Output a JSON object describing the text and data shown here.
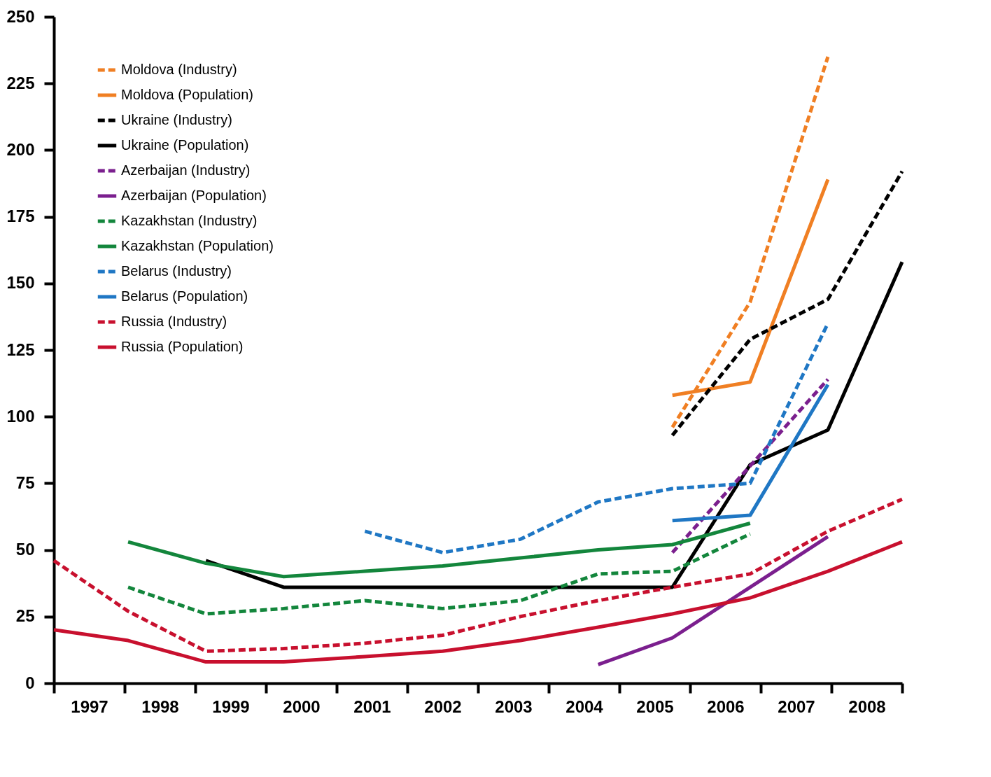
{
  "chart_data": {
    "type": "line",
    "xlim": [
      1997,
      2009
    ],
    "ylim": [
      0,
      250
    ],
    "yticks": [
      0,
      25,
      50,
      75,
      100,
      125,
      150,
      175,
      200,
      225,
      250
    ],
    "xticks": [
      {
        "value": 1997,
        "label": null
      },
      {
        "value": 1997.5,
        "label": "1997"
      },
      {
        "value": 1998,
        "label": null
      },
      {
        "value": 1998.5,
        "label": "1998"
      },
      {
        "value": 1999,
        "label": null
      },
      {
        "value": 1999.5,
        "label": "1999"
      },
      {
        "value": 2000,
        "label": null
      },
      {
        "value": 2000.5,
        "label": "2000"
      },
      {
        "value": 2001,
        "label": null
      },
      {
        "value": 2001.5,
        "label": "2001"
      },
      {
        "value": 2002,
        "label": null
      },
      {
        "value": 2002.5,
        "label": "2002"
      },
      {
        "value": 2003,
        "label": null
      },
      {
        "value": 2003.5,
        "label": "2003"
      },
      {
        "value": 2004,
        "label": null
      },
      {
        "value": 2004.5,
        "label": "2004"
      },
      {
        "value": 2005,
        "label": null
      },
      {
        "value": 2005.5,
        "label": "2005"
      },
      {
        "value": 2006,
        "label": null
      },
      {
        "value": 2006.5,
        "label": "2006"
      },
      {
        "value": 2007,
        "label": null
      },
      {
        "value": 2007.5,
        "label": "2007"
      },
      {
        "value": 2008,
        "label": null
      },
      {
        "value": 2008.5,
        "label": "2008"
      },
      {
        "value": 2009,
        "label": null
      }
    ],
    "grid": false,
    "legend": "top left",
    "marker": "none",
    "series": [
      {
        "name": "Moldova (Industry)",
        "color": "#f07f23",
        "line_style": "dashed",
        "x": [
          2005.75,
          2006.85,
          2007.95
        ],
        "values": [
          96,
          143,
          235
        ]
      },
      {
        "name": "Moldova (Population)",
        "color": "#f07f23",
        "line_style": "solid",
        "x": [
          2005.75,
          2006.85,
          2007.95
        ],
        "values": [
          108,
          113,
          189
        ]
      },
      {
        "name": "Ukraine (Industry)",
        "color": "#000000",
        "line_style": "dashed",
        "x": [
          2005.75,
          2006.85,
          2007.95,
          2009
        ],
        "values": [
          93,
          129,
          144,
          192
        ]
      },
      {
        "name": "Ukraine (Population)",
        "color": "#000000",
        "line_style": "solid",
        "x": [
          1999.15,
          2000.25,
          2005.75,
          2006.85,
          2007.95,
          2009
        ],
        "values": [
          46,
          36,
          36,
          82,
          95,
          158
        ]
      },
      {
        "name": "Azerbaijan (Industry)",
        "color": "#7b1f8e",
        "line_style": "dashed",
        "x": [
          2005.75,
          2007.95
        ],
        "values": [
          49,
          114
        ]
      },
      {
        "name": "Azerbaijan (Population)",
        "color": "#7b1f8e",
        "line_style": "solid",
        "x": [
          2004.7,
          2005.75,
          2007.95
        ],
        "values": [
          7,
          17,
          55
        ]
      },
      {
        "name": "Kazakhstan (Industry)",
        "color": "#13863c",
        "line_style": "dashed",
        "x": [
          1998.05,
          1999.15,
          2000.25,
          2001.4,
          2002.5,
          2003.6,
          2004.7,
          2005.75,
          2006.85
        ],
        "values": [
          36,
          26,
          28,
          31,
          28,
          31,
          41,
          42,
          56
        ]
      },
      {
        "name": "Kazakhstan (Population)",
        "color": "#13863c",
        "line_style": "solid",
        "x": [
          1998.05,
          1999.15,
          2000.25,
          2001.4,
          2002.5,
          2003.6,
          2004.7,
          2005.75,
          2006.85
        ],
        "values": [
          53,
          45,
          40,
          42,
          44,
          47,
          50,
          52,
          60
        ]
      },
      {
        "name": "Belarus (Industry)",
        "color": "#1f77c4",
        "line_style": "dashed",
        "x": [
          2001.4,
          2002.5,
          2003.6,
          2004.7,
          2005.75,
          2006.85,
          2007.95
        ],
        "values": [
          57,
          49,
          54,
          68,
          73,
          75,
          135
        ]
      },
      {
        "name": "Belarus (Population)",
        "color": "#1f77c4",
        "line_style": "solid",
        "x": [
          2005.75,
          2006.85,
          2007.95
        ],
        "values": [
          61,
          63,
          112
        ]
      },
      {
        "name": "Russia (Industry)",
        "color": "#c8102e",
        "line_style": "dashed",
        "x": [
          1997,
          1998.05,
          1999.15,
          2000.25,
          2001.4,
          2002.5,
          2003.6,
          2004.7,
          2005.75,
          2006.85,
          2007.95,
          2009
        ],
        "values": [
          46,
          27,
          12,
          13,
          15,
          18,
          25,
          31,
          36,
          41,
          57,
          69
        ]
      },
      {
        "name": "Russia (Population)",
        "color": "#c8102e",
        "line_style": "solid",
        "x": [
          1997,
          1998.05,
          1999.15,
          2000.25,
          2001.4,
          2002.5,
          2003.6,
          2004.7,
          2005.75,
          2006.85,
          2007.95,
          2009
        ],
        "values": [
          20,
          16,
          8,
          8,
          10,
          12,
          16,
          21,
          26,
          32,
          42,
          53
        ]
      }
    ]
  }
}
